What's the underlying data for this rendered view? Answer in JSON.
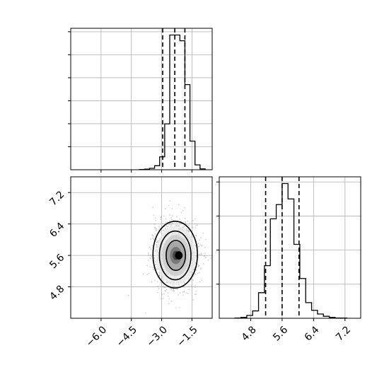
{
  "chart_data": [
    {
      "type": "histogram",
      "panel": "top-left",
      "parameter_index": 0,
      "x_range": [
        -7.5,
        -0.5
      ],
      "grid": true,
      "bin_edges": [
        -4.1,
        -3.85,
        -3.6,
        -3.35,
        -3.1,
        -2.85,
        -2.6,
        -2.35,
        -2.1,
        -1.85,
        -1.6,
        -1.35,
        -1.1,
        -0.85
      ],
      "counts": [
        1,
        2,
        5,
        14,
        45,
        160,
        470,
        470,
        450,
        297,
        100,
        17,
        3
      ],
      "quantile_lines": [
        -2.95,
        -2.35,
        -1.85
      ],
      "y_ticks_shown": 6
    },
    {
      "type": "scatter-density-contour",
      "panel": "bottom-left",
      "x_range": [
        -7.5,
        -0.5
      ],
      "y_range": [
        4.0,
        7.6
      ],
      "x_ticks": [
        -6.0,
        -4.5,
        -3.0,
        -1.5
      ],
      "x_tick_labels": [
        "−6.0",
        "−4.5",
        "−3.0",
        "−1.5"
      ],
      "y_ticks": [
        4.8,
        5.6,
        6.4,
        7.2
      ],
      "y_tick_labels": [
        "4.8",
        "5.6",
        "6.4",
        "7.2"
      ],
      "grid": true,
      "center": [
        -2.3,
        5.6
      ],
      "spread": [
        0.55,
        0.42
      ],
      "contours": [
        {
          "level": "outer",
          "cx": -2.33,
          "cy": 5.62,
          "rx": 1.1,
          "ry": 0.85
        },
        {
          "level": "middle",
          "cx": -2.33,
          "cy": 5.6,
          "rx": 0.78,
          "ry": 0.62
        },
        {
          "level": "inner",
          "cx": -2.3,
          "cy": 5.6,
          "rx": 0.48,
          "ry": 0.38
        },
        {
          "level": "core",
          "cx": -2.15,
          "cy": 5.6,
          "rx": 0.16,
          "ry": 0.09
        }
      ],
      "point_color": "#999999",
      "contour_color": "#000000"
    },
    {
      "type": "histogram",
      "panel": "bottom-right",
      "parameter_index": 1,
      "x_range": [
        4.0,
        7.6
      ],
      "x_ticks": [
        4.8,
        5.6,
        6.4,
        7.2
      ],
      "x_tick_labels": [
        "4.8",
        "5.6",
        "6.4",
        "7.2"
      ],
      "grid": true,
      "bin_edges": [
        4.4,
        4.55,
        4.7,
        4.85,
        5.0,
        5.15,
        5.3,
        5.45,
        5.6,
        5.75,
        5.9,
        6.05,
        6.2,
        6.35,
        6.5,
        6.65,
        6.8,
        6.95,
        7.1,
        7.25
      ],
      "counts": [
        1,
        3,
        10,
        26,
        90,
        185,
        350,
        400,
        474,
        420,
        260,
        140,
        55,
        28,
        15,
        7,
        3,
        1,
        1
      ],
      "quantile_lines": [
        5.18,
        5.6,
        6.03
      ],
      "y_ticks_shown": 4
    }
  ]
}
